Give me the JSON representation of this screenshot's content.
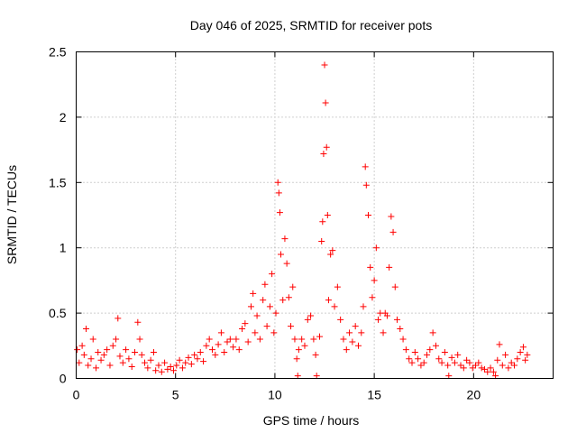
{
  "chart_data": {
    "type": "scatter",
    "title": "Day 046 of 2025, SRMTID for receiver pots",
    "xlabel": "GPS time / hours",
    "ylabel": "SRMTID / TECUs",
    "xlim": [
      0,
      24
    ],
    "ylim": [
      0,
      2.5
    ],
    "xticks": [
      0,
      5,
      10,
      15,
      20
    ],
    "xtick_labels": [
      "0",
      "5",
      "10",
      "15",
      "20"
    ],
    "yticks": [
      0,
      0.5,
      1,
      1.5,
      2,
      2.5
    ],
    "ytick_labels": [
      "0",
      "0.5",
      "1",
      "1.5",
      "2",
      "2.5"
    ],
    "grid": true,
    "marker": "+",
    "series_color": "#ff0000",
    "series": [
      {
        "name": "SRMTID",
        "points": [
          [
            0.05,
            0.22
          ],
          [
            0.15,
            0.12
          ],
          [
            0.3,
            0.25
          ],
          [
            0.4,
            0.18
          ],
          [
            0.5,
            0.38
          ],
          [
            0.6,
            0.1
          ],
          [
            0.75,
            0.15
          ],
          [
            0.85,
            0.3
          ],
          [
            1.0,
            0.08
          ],
          [
            1.1,
            0.2
          ],
          [
            1.25,
            0.14
          ],
          [
            1.4,
            0.18
          ],
          [
            1.55,
            0.22
          ],
          [
            1.7,
            0.1
          ],
          [
            1.85,
            0.25
          ],
          [
            2.0,
            0.3
          ],
          [
            2.1,
            0.46
          ],
          [
            2.2,
            0.17
          ],
          [
            2.35,
            0.12
          ],
          [
            2.5,
            0.22
          ],
          [
            2.65,
            0.15
          ],
          [
            2.8,
            0.09
          ],
          [
            2.95,
            0.2
          ],
          [
            3.1,
            0.43
          ],
          [
            3.2,
            0.3
          ],
          [
            3.3,
            0.18
          ],
          [
            3.45,
            0.12
          ],
          [
            3.6,
            0.08
          ],
          [
            3.75,
            0.14
          ],
          [
            3.9,
            0.2
          ],
          [
            4.0,
            0.06
          ],
          [
            4.15,
            0.1
          ],
          [
            4.3,
            0.05
          ],
          [
            4.45,
            0.12
          ],
          [
            4.6,
            0.07
          ],
          [
            4.75,
            0.09
          ],
          [
            4.9,
            0.06
          ],
          [
            5.05,
            0.1
          ],
          [
            5.2,
            0.14
          ],
          [
            5.35,
            0.08
          ],
          [
            5.5,
            0.12
          ],
          [
            5.65,
            0.16
          ],
          [
            5.8,
            0.11
          ],
          [
            5.95,
            0.18
          ],
          [
            6.1,
            0.15
          ],
          [
            6.25,
            0.2
          ],
          [
            6.4,
            0.13
          ],
          [
            6.55,
            0.25
          ],
          [
            6.7,
            0.3
          ],
          [
            6.85,
            0.22
          ],
          [
            7.0,
            0.18
          ],
          [
            7.15,
            0.26
          ],
          [
            7.3,
            0.35
          ],
          [
            7.45,
            0.2
          ],
          [
            7.6,
            0.28
          ],
          [
            7.75,
            0.3
          ],
          [
            7.9,
            0.24
          ],
          [
            8.05,
            0.3
          ],
          [
            8.2,
            0.22
          ],
          [
            8.35,
            0.38
          ],
          [
            8.5,
            0.42
          ],
          [
            8.65,
            0.28
          ],
          [
            8.8,
            0.55
          ],
          [
            8.9,
            0.65
          ],
          [
            9.0,
            0.35
          ],
          [
            9.1,
            0.48
          ],
          [
            9.25,
            0.3
          ],
          [
            9.4,
            0.6
          ],
          [
            9.5,
            0.72
          ],
          [
            9.6,
            0.4
          ],
          [
            9.75,
            0.55
          ],
          [
            9.85,
            0.8
          ],
          [
            9.95,
            0.35
          ],
          [
            10.05,
            0.5
          ],
          [
            10.15,
            1.5
          ],
          [
            10.2,
            1.42
          ],
          [
            10.25,
            1.27
          ],
          [
            10.3,
            0.95
          ],
          [
            10.4,
            0.6
          ],
          [
            10.5,
            1.07
          ],
          [
            10.6,
            0.88
          ],
          [
            10.7,
            0.62
          ],
          [
            10.8,
            0.4
          ],
          [
            10.9,
            0.7
          ],
          [
            11.0,
            0.3
          ],
          [
            11.1,
            0.15
          ],
          [
            11.15,
            0.02
          ],
          [
            11.2,
            0.22
          ],
          [
            11.35,
            0.3
          ],
          [
            11.5,
            0.25
          ],
          [
            11.65,
            0.45
          ],
          [
            11.8,
            0.48
          ],
          [
            11.95,
            0.3
          ],
          [
            12.05,
            0.18
          ],
          [
            12.1,
            0.02
          ],
          [
            12.25,
            0.32
          ],
          [
            12.35,
            1.05
          ],
          [
            12.4,
            1.2
          ],
          [
            12.45,
            1.72
          ],
          [
            12.5,
            2.4
          ],
          [
            12.55,
            2.11
          ],
          [
            12.6,
            1.77
          ],
          [
            12.65,
            1.25
          ],
          [
            12.7,
            0.6
          ],
          [
            12.8,
            0.95
          ],
          [
            12.9,
            0.98
          ],
          [
            13.0,
            0.55
          ],
          [
            13.15,
            0.7
          ],
          [
            13.3,
            0.45
          ],
          [
            13.45,
            0.3
          ],
          [
            13.6,
            0.22
          ],
          [
            13.75,
            0.35
          ],
          [
            13.9,
            0.28
          ],
          [
            14.05,
            0.4
          ],
          [
            14.2,
            0.25
          ],
          [
            14.35,
            0.35
          ],
          [
            14.45,
            0.55
          ],
          [
            14.55,
            1.62
          ],
          [
            14.6,
            1.48
          ],
          [
            14.7,
            1.25
          ],
          [
            14.8,
            0.85
          ],
          [
            14.9,
            0.62
          ],
          [
            15.0,
            0.75
          ],
          [
            15.1,
            1.0
          ],
          [
            15.2,
            0.45
          ],
          [
            15.3,
            0.5
          ],
          [
            15.45,
            0.35
          ],
          [
            15.55,
            0.5
          ],
          [
            15.65,
            0.48
          ],
          [
            15.75,
            0.85
          ],
          [
            15.85,
            1.24
          ],
          [
            15.95,
            1.12
          ],
          [
            16.05,
            0.7
          ],
          [
            16.15,
            0.45
          ],
          [
            16.3,
            0.38
          ],
          [
            16.45,
            0.3
          ],
          [
            16.6,
            0.22
          ],
          [
            16.75,
            0.15
          ],
          [
            16.9,
            0.12
          ],
          [
            17.05,
            0.2
          ],
          [
            17.2,
            0.15
          ],
          [
            17.35,
            0.1
          ],
          [
            17.5,
            0.12
          ],
          [
            17.65,
            0.18
          ],
          [
            17.8,
            0.22
          ],
          [
            17.95,
            0.35
          ],
          [
            18.1,
            0.25
          ],
          [
            18.25,
            0.15
          ],
          [
            18.4,
            0.12
          ],
          [
            18.55,
            0.2
          ],
          [
            18.7,
            0.1
          ],
          [
            18.75,
            0.02
          ],
          [
            18.9,
            0.16
          ],
          [
            19.05,
            0.12
          ],
          [
            19.2,
            0.18
          ],
          [
            19.35,
            0.1
          ],
          [
            19.5,
            0.08
          ],
          [
            19.65,
            0.14
          ],
          [
            19.8,
            0.12
          ],
          [
            19.95,
            0.08
          ],
          [
            20.1,
            0.1
          ],
          [
            20.25,
            0.12
          ],
          [
            20.4,
            0.08
          ],
          [
            20.55,
            0.07
          ],
          [
            20.7,
            0.05
          ],
          [
            20.85,
            0.08
          ],
          [
            21.0,
            0.05
          ],
          [
            21.1,
            0.02
          ],
          [
            21.2,
            0.14
          ],
          [
            21.3,
            0.26
          ],
          [
            21.45,
            0.1
          ],
          [
            21.6,
            0.18
          ],
          [
            21.75,
            0.08
          ],
          [
            21.9,
            0.12
          ],
          [
            22.05,
            0.1
          ],
          [
            22.2,
            0.15
          ],
          [
            22.35,
            0.2
          ],
          [
            22.5,
            0.24
          ],
          [
            22.6,
            0.14
          ],
          [
            22.7,
            0.18
          ]
        ]
      }
    ]
  }
}
